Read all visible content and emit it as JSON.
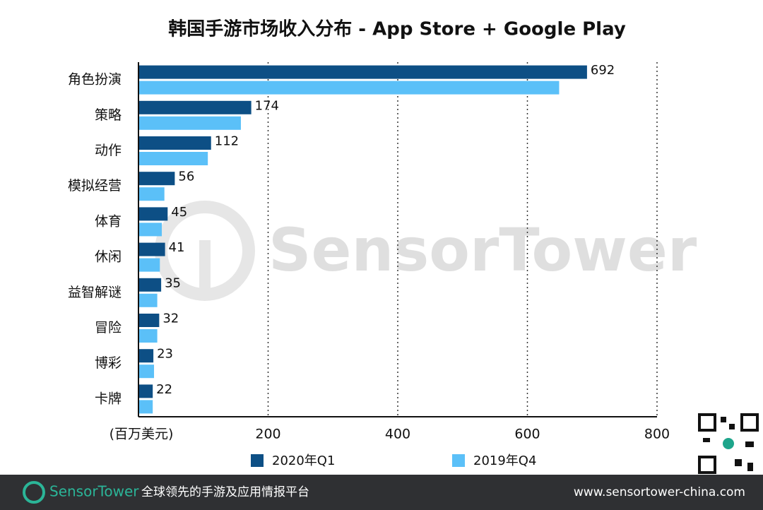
{
  "chart_data": {
    "type": "bar",
    "orientation": "horizontal",
    "title": "韩国手游市场收入分布 - App Store + Google Play",
    "x_label": "(百万美元)",
    "categories": [
      "角色扮演",
      "策略",
      "动作",
      "模拟经营",
      "体育",
      "休闲",
      "益智解谜",
      "冒险",
      "博彩",
      "卡牌"
    ],
    "series": [
      {
        "name": "2020年Q1",
        "color": "#0d4f85",
        "values": [
          692,
          174,
          112,
          56,
          45,
          41,
          35,
          32,
          23,
          22
        ]
      },
      {
        "name": "2019年Q4",
        "color": "#5bc0f8",
        "values": [
          649,
          158,
          107,
          40,
          36,
          33,
          29,
          29,
          24,
          22
        ]
      }
    ],
    "xlim": [
      0,
      800
    ],
    "xticks": [
      200,
      400,
      600,
      800
    ],
    "grid": true
  },
  "watermark": "SensorTower",
  "footer": {
    "brand": "SensorTower",
    "tagline": "全球领先的手游及应用情报平台",
    "url": "www.sensortower-china.com"
  }
}
